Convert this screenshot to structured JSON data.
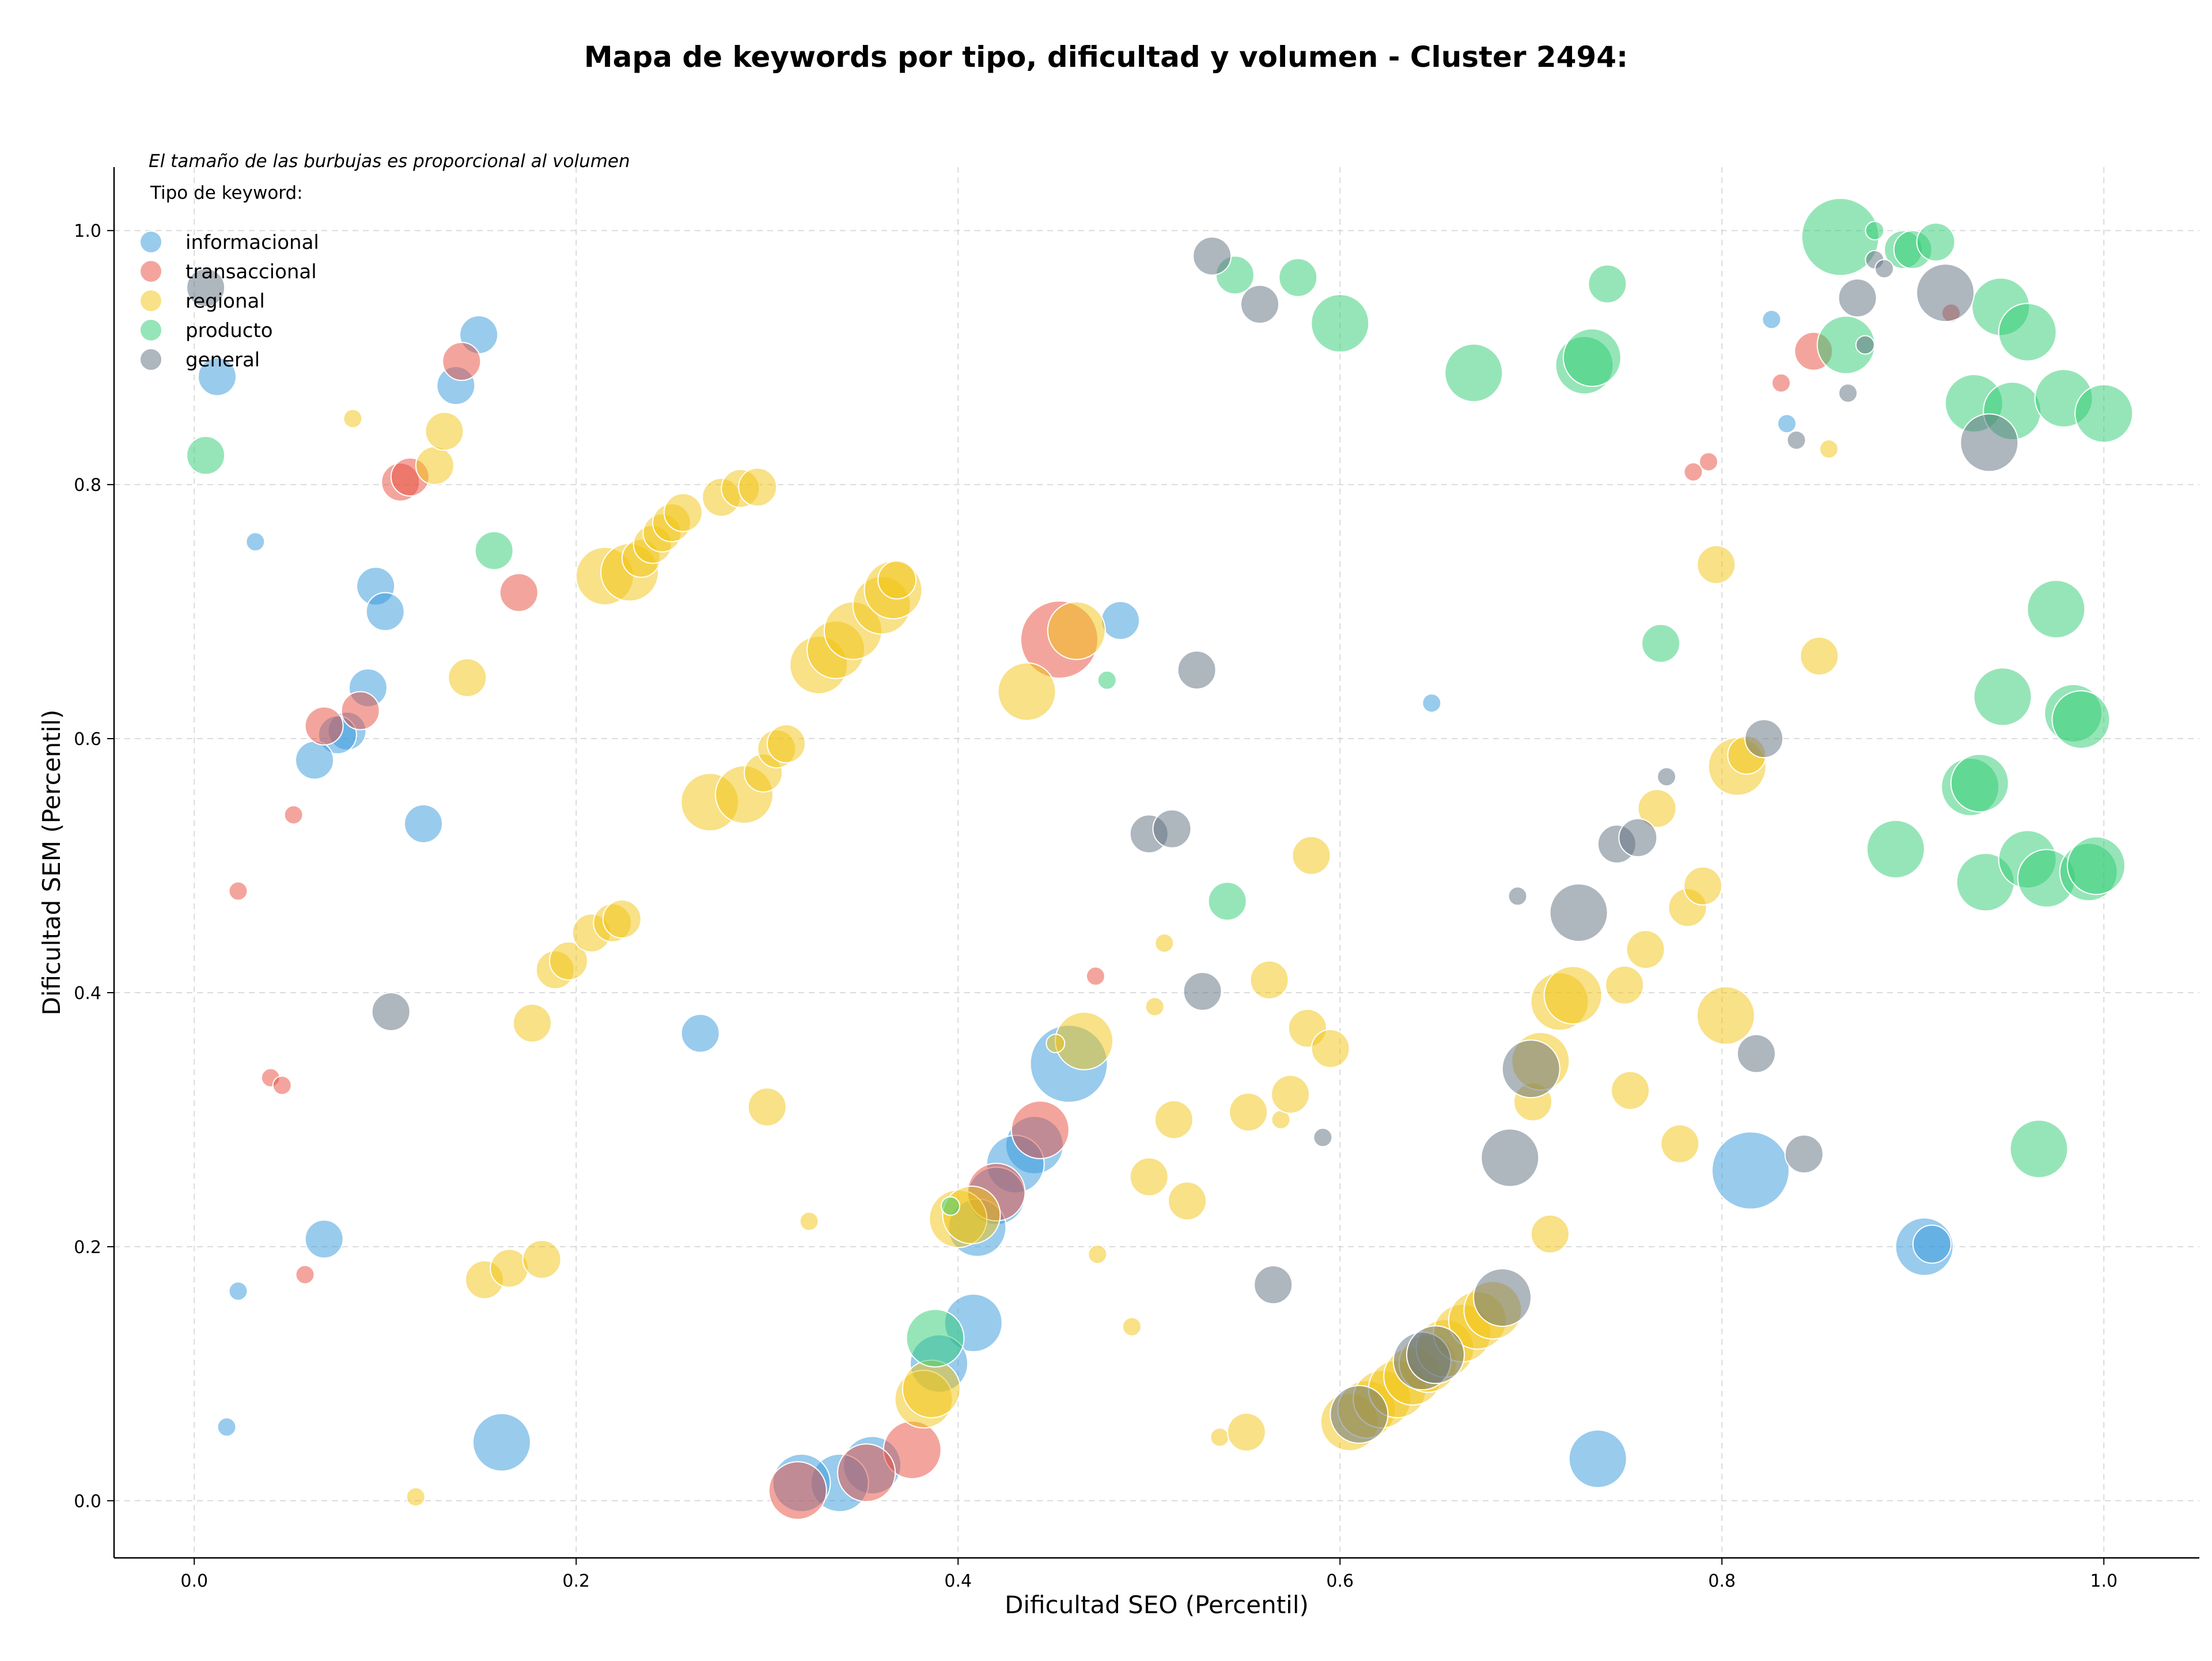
{
  "chart_data": {
    "type": "scatter",
    "title": "Mapa de keywords por tipo, dificultad y volumen - Cluster 2494:",
    "xlabel": "Dificultad SEO (Percentil)",
    "ylabel": "Dificultad SEM (Percentil)",
    "xlim": [
      -0.042,
      1.05
    ],
    "ylim": [
      -0.045,
      1.05
    ],
    "xticks": [
      0.0,
      0.2,
      0.4,
      0.6,
      0.8,
      1.0
    ],
    "yticks": [
      0.0,
      0.2,
      0.4,
      0.6,
      0.8,
      1.0
    ],
    "xtick_labels": [
      "0.0",
      "0.2",
      "0.4",
      "0.6",
      "0.8",
      "1.0"
    ],
    "ytick_labels": [
      "0.0",
      "0.2",
      "0.4",
      "0.6",
      "0.8",
      "1.0"
    ],
    "grid": true,
    "annotation": "El tamaño de las burbujas es proporcional al volumen",
    "legend_title": "Tipo de keyword:",
    "legend_position": "top-left",
    "size_note": "bubble size proportional to volume (relative units 1-5)",
    "series": [
      {
        "name": "informacional",
        "color": "#3498db",
        "points": [
          [
            0.012,
            0.885,
            2
          ],
          [
            0.032,
            0.755,
            1
          ],
          [
            0.095,
            0.72,
            2
          ],
          [
            0.1,
            0.7,
            2
          ],
          [
            0.091,
            0.64,
            2
          ],
          [
            0.08,
            0.606,
            2
          ],
          [
            0.075,
            0.603,
            2
          ],
          [
            0.063,
            0.583,
            2
          ],
          [
            0.12,
            0.533,
            2
          ],
          [
            0.137,
            0.878,
            2
          ],
          [
            0.149,
            0.918,
            2
          ],
          [
            0.068,
            0.206,
            2
          ],
          [
            0.023,
            0.165,
            1
          ],
          [
            0.017,
            0.058,
            1
          ],
          [
            0.161,
            0.046,
            3
          ],
          [
            0.265,
            0.368,
            2
          ],
          [
            0.485,
            0.693,
            2
          ],
          [
            0.458,
            0.344,
            4
          ],
          [
            0.44,
            0.28,
            3
          ],
          [
            0.43,
            0.265,
            3
          ],
          [
            0.42,
            0.24,
            3
          ],
          [
            0.41,
            0.215,
            3
          ],
          [
            0.408,
            0.14,
            3
          ],
          [
            0.39,
            0.108,
            3
          ],
          [
            0.355,
            0.028,
            3
          ],
          [
            0.338,
            0.014,
            3
          ],
          [
            0.318,
            0.014,
            3
          ],
          [
            0.648,
            0.628,
            1
          ],
          [
            0.735,
            0.033,
            3
          ],
          [
            0.815,
            0.26,
            4
          ],
          [
            0.826,
            0.93,
            1
          ],
          [
            0.834,
            0.848,
            1
          ],
          [
            0.906,
            0.2,
            3
          ],
          [
            0.91,
            0.202,
            2
          ]
        ]
      },
      {
        "name": "transaccional",
        "color": "#e74c3c",
        "points": [
          [
            0.14,
            0.897,
            2
          ],
          [
            0.108,
            0.802,
            2
          ],
          [
            0.113,
            0.806,
            2
          ],
          [
            0.17,
            0.715,
            2
          ],
          [
            0.087,
            0.622,
            2
          ],
          [
            0.068,
            0.61,
            2
          ],
          [
            0.052,
            0.54,
            1
          ],
          [
            0.023,
            0.48,
            1
          ],
          [
            0.04,
            0.333,
            1
          ],
          [
            0.046,
            0.327,
            1
          ],
          [
            0.058,
            0.178,
            1
          ],
          [
            0.472,
            0.413,
            1
          ],
          [
            0.453,
            0.678,
            4
          ],
          [
            0.443,
            0.292,
            3
          ],
          [
            0.42,
            0.243,
            3
          ],
          [
            0.376,
            0.04,
            3
          ],
          [
            0.352,
            0.022,
            3
          ],
          [
            0.316,
            0.008,
            3
          ],
          [
            0.785,
            0.81,
            1
          ],
          [
            0.793,
            0.818,
            1
          ],
          [
            0.831,
            0.88,
            1
          ],
          [
            0.848,
            0.905,
            2
          ],
          [
            0.92,
            0.935,
            1
          ]
        ]
      },
      {
        "name": "regional",
        "color": "#f1c40f",
        "points": [
          [
            0.083,
            0.852,
            1
          ],
          [
            0.126,
            0.815,
            2
          ],
          [
            0.131,
            0.842,
            2
          ],
          [
            0.143,
            0.648,
            2
          ],
          [
            0.177,
            0.376,
            2
          ],
          [
            0.152,
            0.174,
            2
          ],
          [
            0.165,
            0.183,
            2
          ],
          [
            0.182,
            0.19,
            2
          ],
          [
            0.116,
            0.003,
            1
          ],
          [
            0.189,
            0.418,
            2
          ],
          [
            0.196,
            0.425,
            2
          ],
          [
            0.208,
            0.447,
            2
          ],
          [
            0.219,
            0.455,
            2
          ],
          [
            0.224,
            0.458,
            2
          ],
          [
            0.215,
            0.728,
            3
          ],
          [
            0.228,
            0.731,
            3
          ],
          [
            0.234,
            0.742,
            2
          ],
          [
            0.24,
            0.753,
            2
          ],
          [
            0.245,
            0.762,
            2
          ],
          [
            0.25,
            0.77,
            2
          ],
          [
            0.256,
            0.778,
            2
          ],
          [
            0.276,
            0.79,
            2
          ],
          [
            0.286,
            0.797,
            2
          ],
          [
            0.295,
            0.798,
            2
          ],
          [
            0.27,
            0.55,
            3
          ],
          [
            0.288,
            0.556,
            3
          ],
          [
            0.298,
            0.573,
            2
          ],
          [
            0.305,
            0.592,
            2
          ],
          [
            0.31,
            0.596,
            2
          ],
          [
            0.327,
            0.658,
            3
          ],
          [
            0.336,
            0.67,
            3
          ],
          [
            0.345,
            0.685,
            3
          ],
          [
            0.36,
            0.705,
            3
          ],
          [
            0.366,
            0.717,
            3
          ],
          [
            0.368,
            0.725,
            2
          ],
          [
            0.3,
            0.31,
            2
          ],
          [
            0.322,
            0.22,
            1
          ],
          [
            0.436,
            0.637,
            3
          ],
          [
            0.462,
            0.685,
            3
          ],
          [
            0.466,
            0.362,
            3
          ],
          [
            0.451,
            0.36,
            1
          ],
          [
            0.473,
            0.194,
            1
          ],
          [
            0.491,
            0.137,
            1
          ],
          [
            0.4,
            0.222,
            3
          ],
          [
            0.407,
            0.225,
            3
          ],
          [
            0.382,
            0.08,
            3
          ],
          [
            0.386,
            0.088,
            3
          ],
          [
            0.503,
            0.389,
            1
          ],
          [
            0.508,
            0.439,
            1
          ],
          [
            0.5,
            0.255,
            2
          ],
          [
            0.513,
            0.3,
            2
          ],
          [
            0.52,
            0.236,
            2
          ],
          [
            0.537,
            0.05,
            1
          ],
          [
            0.551,
            0.054,
            2
          ],
          [
            0.552,
            0.306,
            2
          ],
          [
            0.563,
            0.41,
            2
          ],
          [
            0.569,
            0.3,
            1
          ],
          [
            0.574,
            0.32,
            2
          ],
          [
            0.583,
            0.372,
            2
          ],
          [
            0.585,
            0.508,
            2
          ],
          [
            0.595,
            0.356,
            2
          ],
          [
            0.605,
            0.062,
            3
          ],
          [
            0.614,
            0.072,
            3
          ],
          [
            0.622,
            0.08,
            3
          ],
          [
            0.63,
            0.088,
            3
          ],
          [
            0.638,
            0.098,
            3
          ],
          [
            0.646,
            0.108,
            3
          ],
          [
            0.655,
            0.12,
            3
          ],
          [
            0.664,
            0.132,
            3
          ],
          [
            0.672,
            0.142,
            3
          ],
          [
            0.68,
            0.15,
            3
          ],
          [
            0.701,
            0.314,
            2
          ],
          [
            0.705,
            0.346,
            3
          ],
          [
            0.71,
            0.21,
            2
          ],
          [
            0.715,
            0.393,
            3
          ],
          [
            0.722,
            0.398,
            3
          ],
          [
            0.749,
            0.406,
            2
          ],
          [
            0.752,
            0.323,
            2
          ],
          [
            0.76,
            0.434,
            2
          ],
          [
            0.766,
            0.545,
            2
          ],
          [
            0.778,
            0.281,
            2
          ],
          [
            0.782,
            0.467,
            2
          ],
          [
            0.79,
            0.484,
            2
          ],
          [
            0.797,
            0.737,
            2
          ],
          [
            0.802,
            0.382,
            3
          ],
          [
            0.808,
            0.578,
            3
          ],
          [
            0.813,
            0.587,
            2
          ],
          [
            0.851,
            0.665,
            2
          ],
          [
            0.856,
            0.828,
            1
          ]
        ]
      },
      {
        "name": "producto",
        "color": "#2ecc71",
        "points": [
          [
            0.006,
            0.823,
            2
          ],
          [
            0.157,
            0.748,
            2
          ],
          [
            0.396,
            0.232,
            1
          ],
          [
            0.388,
            0.128,
            3
          ],
          [
            0.478,
            0.646,
            1
          ],
          [
            0.541,
            0.472,
            2
          ],
          [
            0.545,
            0.965,
            2
          ],
          [
            0.578,
            0.963,
            2
          ],
          [
            0.6,
            0.927,
            3
          ],
          [
            0.67,
            0.888,
            3
          ],
          [
            0.728,
            0.894,
            3
          ],
          [
            0.732,
            0.9,
            3
          ],
          [
            0.74,
            0.958,
            2
          ],
          [
            0.768,
            0.675,
            2
          ],
          [
            0.862,
            0.995,
            4
          ],
          [
            0.865,
            0.91,
            3
          ],
          [
            0.88,
            1.0,
            1
          ],
          [
            0.895,
            0.985,
            2
          ],
          [
            0.9,
            0.985,
            2
          ],
          [
            0.912,
            0.991,
            2
          ],
          [
            0.93,
            0.562,
            3
          ],
          [
            0.935,
            0.565,
            3
          ],
          [
            0.932,
            0.864,
            3
          ],
          [
            0.938,
            0.487,
            3
          ],
          [
            0.946,
            0.94,
            3
          ],
          [
            0.947,
            0.633,
            3
          ],
          [
            0.952,
            0.858,
            3
          ],
          [
            0.96,
            0.505,
            3
          ],
          [
            0.96,
            0.92,
            3
          ],
          [
            0.966,
            0.277,
            3
          ],
          [
            0.97,
            0.49,
            3
          ],
          [
            0.975,
            0.702,
            3
          ],
          [
            0.979,
            0.868,
            3
          ],
          [
            0.984,
            0.62,
            3
          ],
          [
            0.988,
            0.615,
            3
          ],
          [
            0.992,
            0.495,
            3
          ],
          [
            0.996,
            0.5,
            3
          ],
          [
            1.0,
            0.856,
            3
          ],
          [
            0.891,
            0.513,
            3
          ]
        ]
      },
      {
        "name": "general",
        "color": "#5d6d7e",
        "points": [
          [
            0.006,
            0.955,
            2
          ],
          [
            0.103,
            0.385,
            2
          ],
          [
            0.525,
            0.654,
            2
          ],
          [
            0.528,
            0.401,
            2
          ],
          [
            0.533,
            0.98,
            2
          ],
          [
            0.558,
            0.942,
            2
          ],
          [
            0.5,
            0.525,
            2
          ],
          [
            0.512,
            0.529,
            2
          ],
          [
            0.565,
            0.17,
            2
          ],
          [
            0.591,
            0.286,
            1
          ],
          [
            0.61,
            0.068,
            3
          ],
          [
            0.643,
            0.11,
            3
          ],
          [
            0.65,
            0.115,
            3
          ],
          [
            0.685,
            0.16,
            3
          ],
          [
            0.689,
            0.27,
            3
          ],
          [
            0.693,
            0.476,
            1
          ],
          [
            0.7,
            0.34,
            3
          ],
          [
            0.725,
            0.463,
            3
          ],
          [
            0.745,
            0.517,
            2
          ],
          [
            0.756,
            0.522,
            2
          ],
          [
            0.771,
            0.57,
            1
          ],
          [
            0.818,
            0.352,
            2
          ],
          [
            0.822,
            0.6,
            2
          ],
          [
            0.839,
            0.835,
            1
          ],
          [
            0.843,
            0.273,
            2
          ],
          [
            0.866,
            0.872,
            1
          ],
          [
            0.871,
            0.947,
            2
          ],
          [
            0.875,
            0.91,
            1
          ],
          [
            0.88,
            0.977,
            1
          ],
          [
            0.885,
            0.97,
            1
          ],
          [
            0.917,
            0.951,
            3
          ],
          [
            0.94,
            0.833,
            3
          ]
        ]
      }
    ]
  }
}
